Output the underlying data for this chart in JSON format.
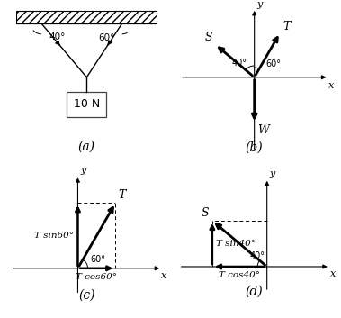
{
  "background_color": "#ffffff",
  "label_a": "(a)",
  "label_b": "(b)",
  "label_c": "(c)",
  "label_d": "(d)",
  "weight_label": "10 N",
  "S_label": "S",
  "T_label": "T",
  "W_label": "W",
  "x_label": "x",
  "y_label": "y",
  "Tsin60_label": "T sin60°",
  "Tcos60_label": "T cos60°",
  "Tsin40_label": "T sin40°",
  "Tcos40_label": "T cos40°",
  "angle60_label": "60°",
  "angle40_label": "40°",
  "font_size_small": 7,
  "font_size_label": 8,
  "font_size_caption": 9
}
